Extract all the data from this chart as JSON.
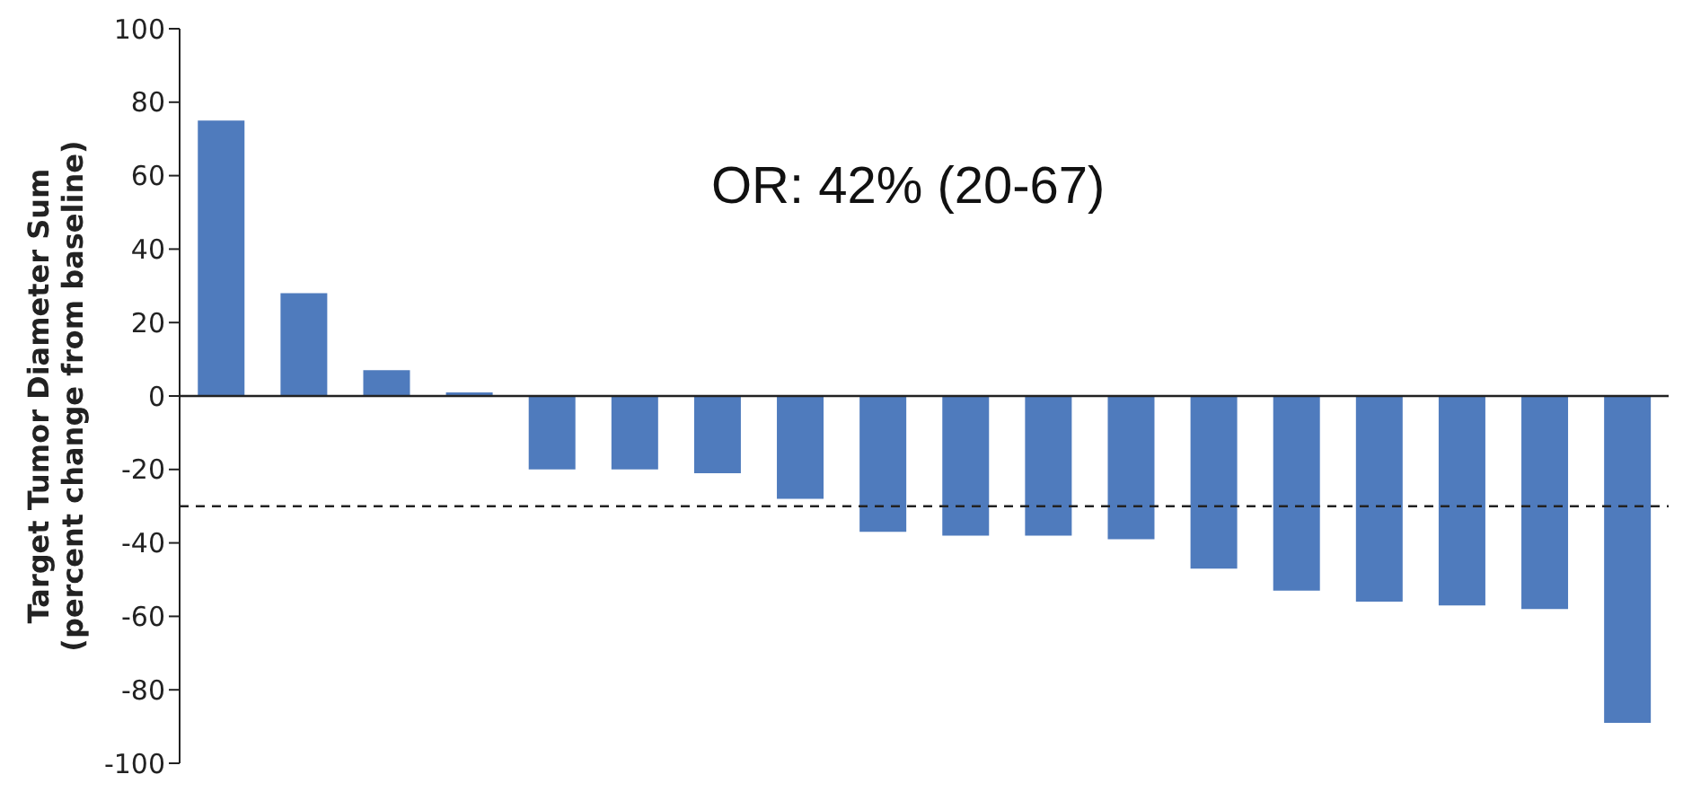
{
  "chart_data": {
    "type": "bar",
    "ylabel": "Target Tumor Diameter Sum\n(percent change from baseline)",
    "annotations": [
      "OR: 42% (20-67)"
    ],
    "categories": [
      null,
      null,
      null,
      null,
      null,
      null,
      null,
      null,
      null,
      null,
      null,
      null,
      null,
      null,
      null,
      null,
      null,
      null
    ],
    "values": [
      75,
      28,
      7,
      1,
      -20,
      -20,
      -21,
      -28,
      -37,
      -38,
      -38,
      -39,
      -47,
      -53,
      -56,
      -57,
      -58,
      -89
    ],
    "color": "#4f7bbd",
    "ylim": [
      -100,
      100
    ],
    "yticks": [
      -100,
      -80,
      -60,
      -40,
      -20,
      0,
      20,
      40,
      60,
      80,
      100
    ],
    "ref_lines": [
      {
        "axis": "y",
        "value": -30,
        "label": null,
        "line_style": "dashed",
        "color": "#222222"
      }
    ]
  }
}
